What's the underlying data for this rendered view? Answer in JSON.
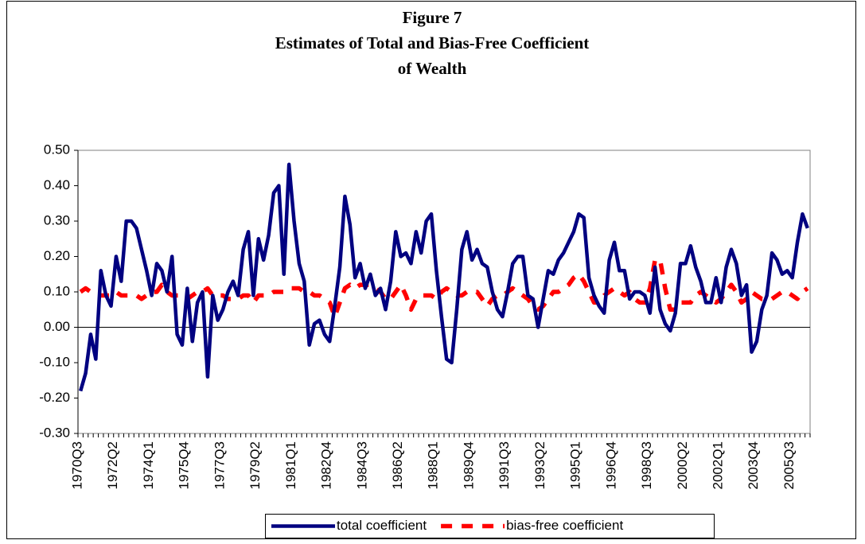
{
  "chart_data": {
    "type": "line",
    "title": [
      "Figure 7",
      "Estimates of Total and Bias-Free Coefficient",
      "of Wealth"
    ],
    "categories": [
      "1970Q3",
      null,
      null,
      null,
      null,
      null,
      null,
      "1972Q2",
      null,
      null,
      null,
      null,
      null,
      null,
      "1974Q1",
      null,
      null,
      null,
      null,
      null,
      null,
      "1975Q4",
      null,
      null,
      null,
      null,
      null,
      null,
      "1977Q3",
      null,
      null,
      null,
      null,
      null,
      null,
      "1979Q2",
      null,
      null,
      null,
      null,
      null,
      null,
      "1981Q1",
      null,
      null,
      null,
      null,
      null,
      null,
      "1982Q4",
      null,
      null,
      null,
      null,
      null,
      null,
      "1984Q3",
      null,
      null,
      null,
      null,
      null,
      null,
      "1986Q2",
      null,
      null,
      null,
      null,
      null,
      null,
      "1988Q1",
      null,
      null,
      null,
      null,
      null,
      null,
      "1989Q4",
      null,
      null,
      null,
      null,
      null,
      null,
      "1991Q3",
      null,
      null,
      null,
      null,
      null,
      null,
      "1993Q2",
      null,
      null,
      null,
      null,
      null,
      null,
      "1995Q1",
      null,
      null,
      null,
      null,
      null,
      null,
      "1996Q4",
      null,
      null,
      null,
      null,
      null,
      null,
      "1998Q3",
      null,
      null,
      null,
      null,
      null,
      null,
      "2000Q2",
      null,
      null,
      null,
      null,
      null,
      null,
      "2002Q1",
      null,
      null,
      null,
      null,
      null,
      null,
      "2003Q4",
      null,
      null,
      null,
      null,
      null,
      null,
      "2005Q3",
      null,
      null,
      null
    ],
    "series": [
      {
        "name": "total coefficient",
        "color": "#000080",
        "linestyle": "solid",
        "values": [
          -0.18,
          -0.13,
          -0.02,
          -0.09,
          0.16,
          0.09,
          0.06,
          0.2,
          0.13,
          0.3,
          0.3,
          0.28,
          0.22,
          0.16,
          0.09,
          0.18,
          0.16,
          0.1,
          0.2,
          -0.02,
          -0.05,
          0.11,
          -0.04,
          0.07,
          0.1,
          -0.14,
          0.09,
          0.02,
          0.05,
          0.1,
          0.13,
          0.09,
          0.22,
          0.27,
          0.09,
          0.25,
          0.19,
          0.26,
          0.38,
          0.4,
          0.15,
          0.46,
          0.3,
          0.18,
          0.13,
          -0.05,
          0.01,
          0.02,
          -0.02,
          -0.04,
          0.06,
          0.17,
          0.37,
          0.29,
          0.14,
          0.18,
          0.11,
          0.15,
          0.09,
          0.11,
          0.05,
          0.13,
          0.27,
          0.2,
          0.21,
          0.18,
          0.27,
          0.21,
          0.3,
          0.32,
          0.16,
          0.03,
          -0.09,
          -0.1,
          0.05,
          0.22,
          0.27,
          0.19,
          0.22,
          0.18,
          0.17,
          0.1,
          0.05,
          0.03,
          0.1,
          0.18,
          0.2,
          0.2,
          0.09,
          0.08,
          0.0,
          0.08,
          0.16,
          0.15,
          0.19,
          0.21,
          0.24,
          0.27,
          0.32,
          0.31,
          0.14,
          0.09,
          0.06,
          0.04,
          0.19,
          0.24,
          0.16,
          0.16,
          0.08,
          0.1,
          0.1,
          0.09,
          0.04,
          0.17,
          0.05,
          0.01,
          -0.01,
          0.04,
          0.18,
          0.18,
          0.23,
          0.17,
          0.13,
          0.07,
          0.07,
          0.14,
          0.07,
          0.17,
          0.22,
          0.18,
          0.09,
          0.12,
          -0.07,
          -0.04,
          0.05,
          0.09,
          0.21,
          0.19,
          0.15,
          0.16,
          0.14,
          0.24,
          0.32,
          0.28
        ]
      },
      {
        "name": "bias-free coefficient",
        "color": "#ff0000",
        "linestyle": "dashed",
        "values": [
          0.1,
          0.11,
          0.1,
          0.09,
          0.09,
          0.09,
          0.09,
          0.1,
          0.09,
          0.09,
          0.09,
          0.09,
          0.08,
          0.09,
          0.1,
          0.1,
          0.12,
          0.1,
          0.09,
          0.09,
          0.09,
          0.08,
          0.09,
          0.1,
          0.1,
          0.11,
          0.09,
          0.09,
          0.09,
          0.08,
          0.08,
          0.08,
          0.09,
          0.09,
          0.07,
          0.09,
          0.09,
          0.09,
          0.1,
          0.1,
          0.1,
          0.11,
          0.11,
          0.11,
          0.1,
          0.1,
          0.09,
          0.09,
          0.08,
          0.07,
          0.03,
          0.07,
          0.11,
          0.12,
          0.11,
          0.12,
          0.12,
          0.12,
          0.11,
          0.1,
          0.08,
          0.08,
          0.1,
          0.12,
          0.09,
          0.05,
          0.08,
          0.09,
          0.09,
          0.09,
          0.08,
          0.1,
          0.11,
          0.1,
          0.09,
          0.09,
          0.1,
          0.1,
          0.1,
          0.08,
          0.06,
          0.08,
          0.09,
          0.09,
          0.1,
          0.11,
          0.1,
          0.09,
          0.08,
          0.06,
          0.05,
          0.06,
          0.08,
          0.1,
          0.1,
          0.11,
          0.12,
          0.14,
          0.15,
          0.13,
          0.1,
          0.07,
          0.07,
          0.09,
          0.1,
          0.11,
          0.1,
          0.09,
          0.1,
          0.08,
          0.07,
          0.07,
          0.11,
          0.19,
          0.19,
          0.11,
          0.05,
          0.05,
          0.07,
          0.07,
          0.07,
          0.09,
          0.1,
          0.09,
          0.08,
          0.07,
          0.08,
          0.1,
          0.12,
          0.1,
          0.07,
          0.08,
          0.1,
          0.09,
          0.08,
          0.08,
          0.08,
          0.09,
          0.1,
          0.1,
          0.09,
          0.08,
          0.1,
          0.11
        ]
      }
    ],
    "ylim": [
      -0.3,
      0.5
    ],
    "yticks": [
      {
        "value": -0.3,
        "label": "-0.30"
      },
      {
        "value": -0.2,
        "label": "-0.20"
      },
      {
        "value": -0.1,
        "label": "-0.10"
      },
      {
        "value": 0,
        "label": "0.00"
      },
      {
        "value": 0.1,
        "label": "0.10"
      },
      {
        "value": 0.2,
        "label": "0.20"
      },
      {
        "value": 0.3,
        "label": "0.30"
      },
      {
        "value": 0.4,
        "label": "0.40"
      },
      {
        "value": 0.5,
        "label": "0.50"
      }
    ],
    "grid": false,
    "legend": "bottom"
  }
}
